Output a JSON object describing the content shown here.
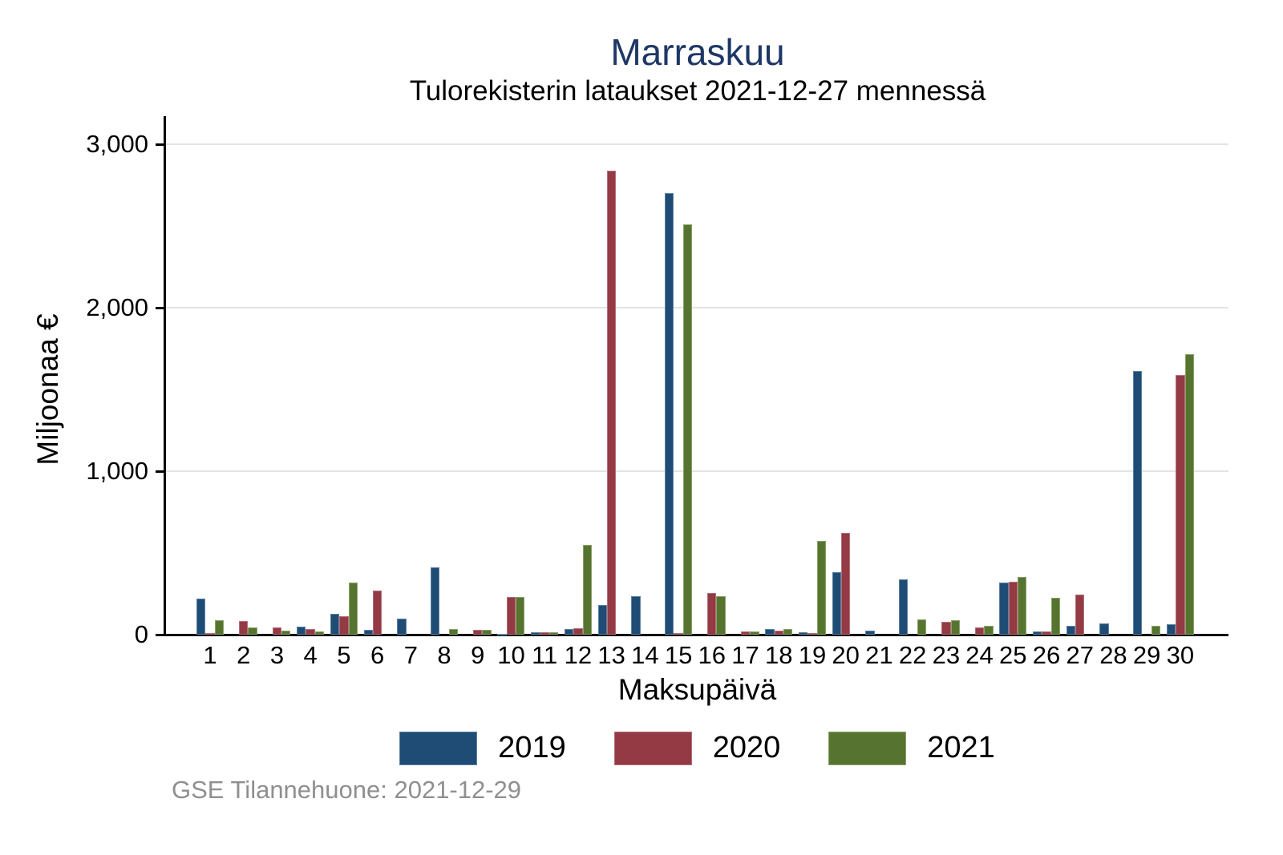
{
  "chart_data": {
    "type": "bar",
    "title": "Marraskuu",
    "subtitle": "Tulorekisterin lataukset 2021-12-27 mennessä",
    "xlabel": "Maksupäivä",
    "ylabel": "Miljoonaa €",
    "caption": "GSE Tilannehuone: 2021-12-29",
    "grid": true,
    "legend_position": "bottom",
    "ylim": [
      0,
      3100
    ],
    "yticks": [
      0,
      1000,
      2000,
      3000
    ],
    "ytick_labels": [
      "0",
      "1,000",
      "2,000",
      "3,000"
    ],
    "categories": [
      "1",
      "2",
      "3",
      "4",
      "5",
      "6",
      "7",
      "8",
      "9",
      "10",
      "11",
      "12",
      "13",
      "14",
      "15",
      "16",
      "17",
      "18",
      "19",
      "20",
      "21",
      "22",
      "23",
      "24",
      "25",
      "26",
      "27",
      "28",
      "29",
      "30"
    ],
    "series": [
      {
        "name": "2019",
        "color": "#1e4c74",
        "border_color": "#5e82a2",
        "values": [
          220,
          0,
          0,
          49,
          128,
          29,
          98,
          410,
          0,
          7,
          17,
          33,
          180,
          237,
          2700,
          0,
          0,
          33,
          13,
          380,
          23,
          340,
          0,
          0,
          319,
          22,
          53,
          70,
          1615,
          66
        ]
      },
      {
        "name": "2020",
        "color": "#933a44",
        "border_color": "#b4707a",
        "values": [
          8,
          85,
          45,
          34,
          115,
          270,
          0,
          0,
          28,
          230,
          16,
          41,
          2840,
          0,
          12,
          256,
          20,
          25,
          12,
          623,
          0,
          0,
          77,
          44,
          324,
          19,
          244,
          0,
          0,
          1588
        ]
      },
      {
        "name": "2021",
        "color": "#567430",
        "border_color": "#8ba268",
        "values": [
          87,
          42,
          26,
          22,
          320,
          0,
          0,
          34,
          27,
          228,
          13,
          551,
          0,
          0,
          2510,
          237,
          21,
          33,
          574,
          0,
          0,
          93,
          90,
          53,
          355,
          224,
          0,
          0,
          53,
          1714
        ]
      }
    ],
    "colors": {
      "title": "#1e3766",
      "gridline": "#e4e4e4",
      "axis": "#000000",
      "caption": "#8f8f8f"
    }
  }
}
